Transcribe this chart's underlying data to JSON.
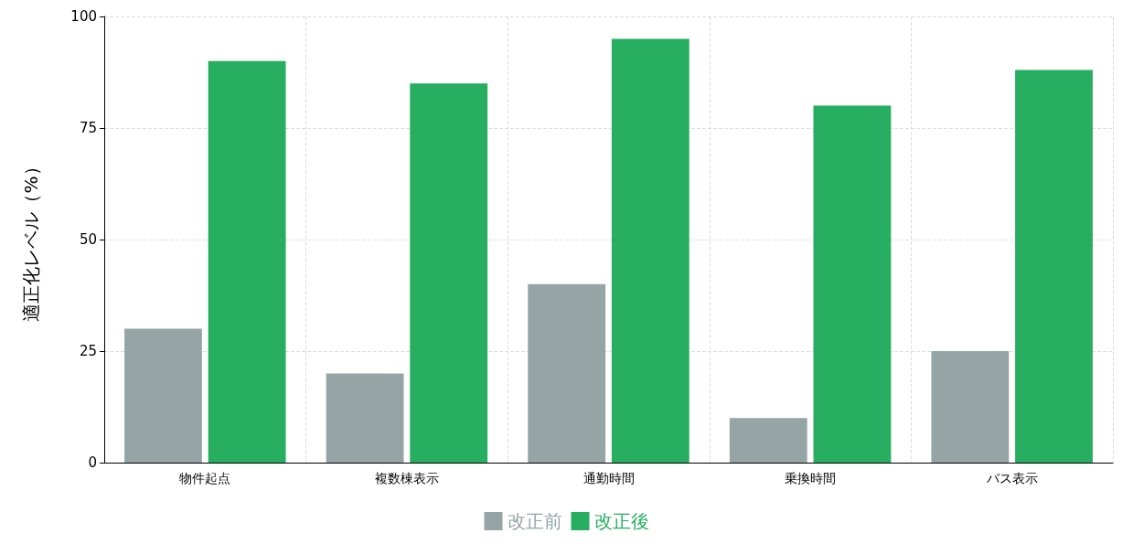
{
  "chart_data": {
    "type": "bar",
    "ylabel": "適正化レベル（%）",
    "categories": [
      "物件起点",
      "複数棟表示",
      "通勤時間",
      "乗換時間",
      "バス表示"
    ],
    "series": [
      {
        "name": "改正前",
        "color": "#95a5a6",
        "values": [
          30,
          20,
          40,
          10,
          25
        ]
      },
      {
        "name": "改正後",
        "color": "#27ae60",
        "values": [
          90,
          85,
          95,
          80,
          88
        ]
      }
    ],
    "ylim": [
      0,
      100
    ],
    "yticks": [
      0,
      25,
      50,
      75,
      100
    ],
    "grid": true,
    "legend": "bottom"
  }
}
